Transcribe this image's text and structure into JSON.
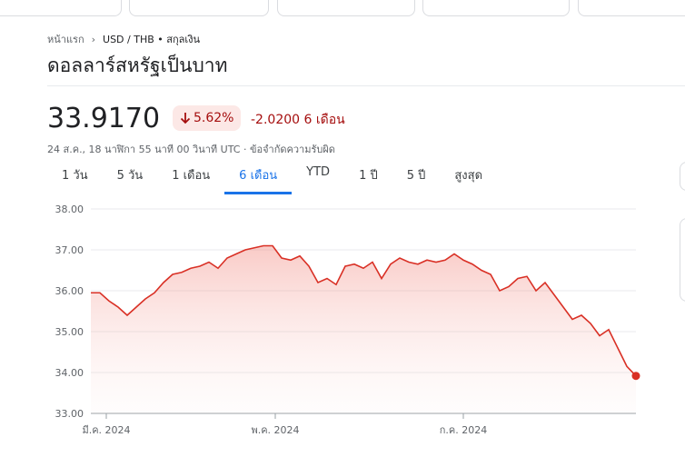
{
  "breadcrumb": [
    "หน้าแรก",
    "USD / THB • สกุลเงิน"
  ],
  "header": {
    "title": "ดอลลาร์สหรัฐเป็นบาท",
    "price": "33.9170",
    "change_percent": "5.62%",
    "change": "-2.0200 6 เดือน",
    "timestamp": "24 ส.ค., 18 นาฬิกา 55 นาที 00 วินาที UTC · ข้อจำกัดความรับผิด"
  },
  "tabs": [
    "1 วัน",
    "5 วัน",
    "1 เดือน",
    "6 เดือน",
    "YTD",
    "1 ปี",
    "5 ปี",
    "สูงสุด"
  ],
  "selected_tab": 3,
  "chart_data": {
    "type": "line",
    "color": "#d93025",
    "x": [
      0,
      1,
      2,
      3,
      4,
      5,
      6,
      7,
      8,
      9,
      10,
      11,
      12,
      13,
      14,
      15,
      16,
      17,
      18,
      19,
      20,
      21,
      22,
      23,
      24,
      25,
      26,
      27,
      28,
      29,
      30,
      31,
      32,
      33,
      34,
      35,
      36,
      37,
      38,
      39,
      40,
      41,
      42,
      43,
      44,
      45,
      46,
      47,
      48,
      49,
      50,
      51,
      52,
      53,
      54,
      55,
      56,
      57,
      58,
      59,
      60
    ],
    "values": [
      35.95,
      35.95,
      35.75,
      35.6,
      35.4,
      35.6,
      35.8,
      35.95,
      36.2,
      36.4,
      36.45,
      36.55,
      36.6,
      36.7,
      36.55,
      36.8,
      36.9,
      37.0,
      37.05,
      37.1,
      37.1,
      36.8,
      36.75,
      36.85,
      36.6,
      36.2,
      36.3,
      36.15,
      36.6,
      36.65,
      36.55,
      36.7,
      36.3,
      36.65,
      36.8,
      36.7,
      36.65,
      36.75,
      36.7,
      36.75,
      36.9,
      36.75,
      36.65,
      36.5,
      36.4,
      36.0,
      36.1,
      36.3,
      36.35,
      36.0,
      36.2,
      35.9,
      35.6,
      35.3,
      35.4,
      35.2,
      34.9,
      35.05,
      34.6,
      34.15,
      33.917
    ],
    "xlim": [
      0,
      60
    ],
    "xticks": [
      {
        "value": 1.7,
        "label": "มี.ค. 2024"
      },
      {
        "value": 20.3,
        "label": "พ.ค. 2024"
      },
      {
        "value": 41,
        "label": "ก.ค. 2024"
      }
    ],
    "ylim": [
      33,
      38
    ],
    "yticks": [
      {
        "value": 33,
        "label": "33.00"
      },
      {
        "value": 34,
        "label": "34.00"
      },
      {
        "value": 35,
        "label": "35.00"
      },
      {
        "value": 36,
        "label": "36.00"
      },
      {
        "value": 37,
        "label": "37.00"
      },
      {
        "value": 38,
        "label": "38.00"
      }
    ],
    "grid": true
  }
}
